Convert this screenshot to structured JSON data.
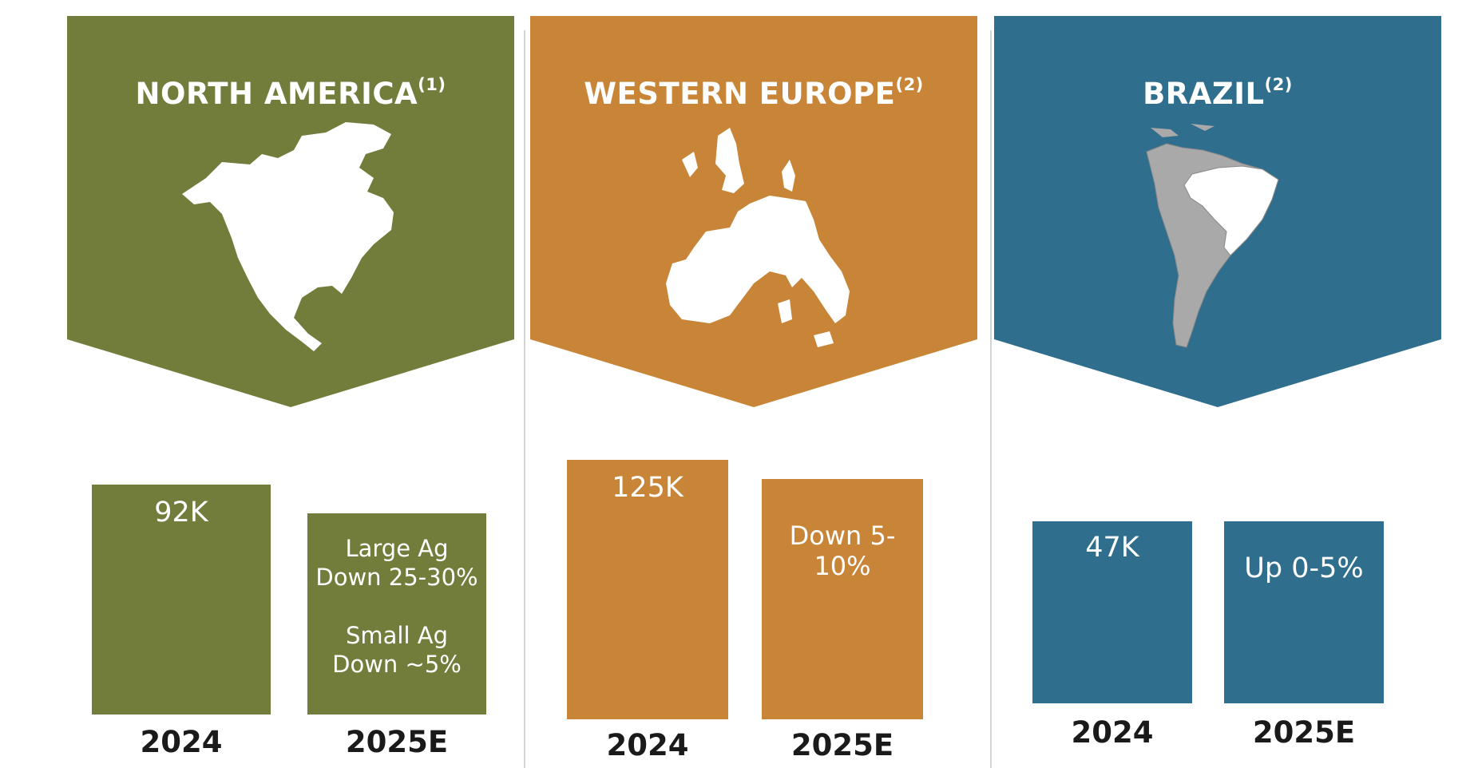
{
  "chart_data": [
    {
      "type": "bar",
      "title": "NORTH AMERICA",
      "title_footnote": "(1)",
      "color": "#727d3c",
      "categories": [
        "2024",
        "2025E"
      ],
      "values": [
        92,
        null
      ],
      "labels": [
        "92K",
        "Large Ag Down 25-30% Small Ag Down ~5%"
      ],
      "label_lines": [
        [
          "92K"
        ],
        [
          "Large Ag",
          "Down 25-30%",
          "",
          "Small Ag",
          "Down ~5%"
        ]
      ]
    },
    {
      "type": "bar",
      "title": "WESTERN EUROPE",
      "title_footnote": "(2)",
      "color": "#c98537",
      "categories": [
        "2024",
        "2025E"
      ],
      "values": [
        125,
        null
      ],
      "labels": [
        "125K",
        "Down 5-10%"
      ],
      "label_lines": [
        [
          "125K"
        ],
        [
          "Down 5-10%"
        ]
      ]
    },
    {
      "type": "bar",
      "title": "BRAZIL",
      "title_footnote": "(2)",
      "color": "#306e8e",
      "categories": [
        "2024",
        "2025E"
      ],
      "values": [
        47,
        null
      ],
      "labels": [
        "47K",
        "Up 0-5%"
      ],
      "label_lines": [
        [
          "47K"
        ],
        [
          "Up 0-5%"
        ]
      ]
    }
  ],
  "icons": [
    "north-america-map-icon",
    "western-europe-map-icon",
    "south-america-map-icon"
  ]
}
